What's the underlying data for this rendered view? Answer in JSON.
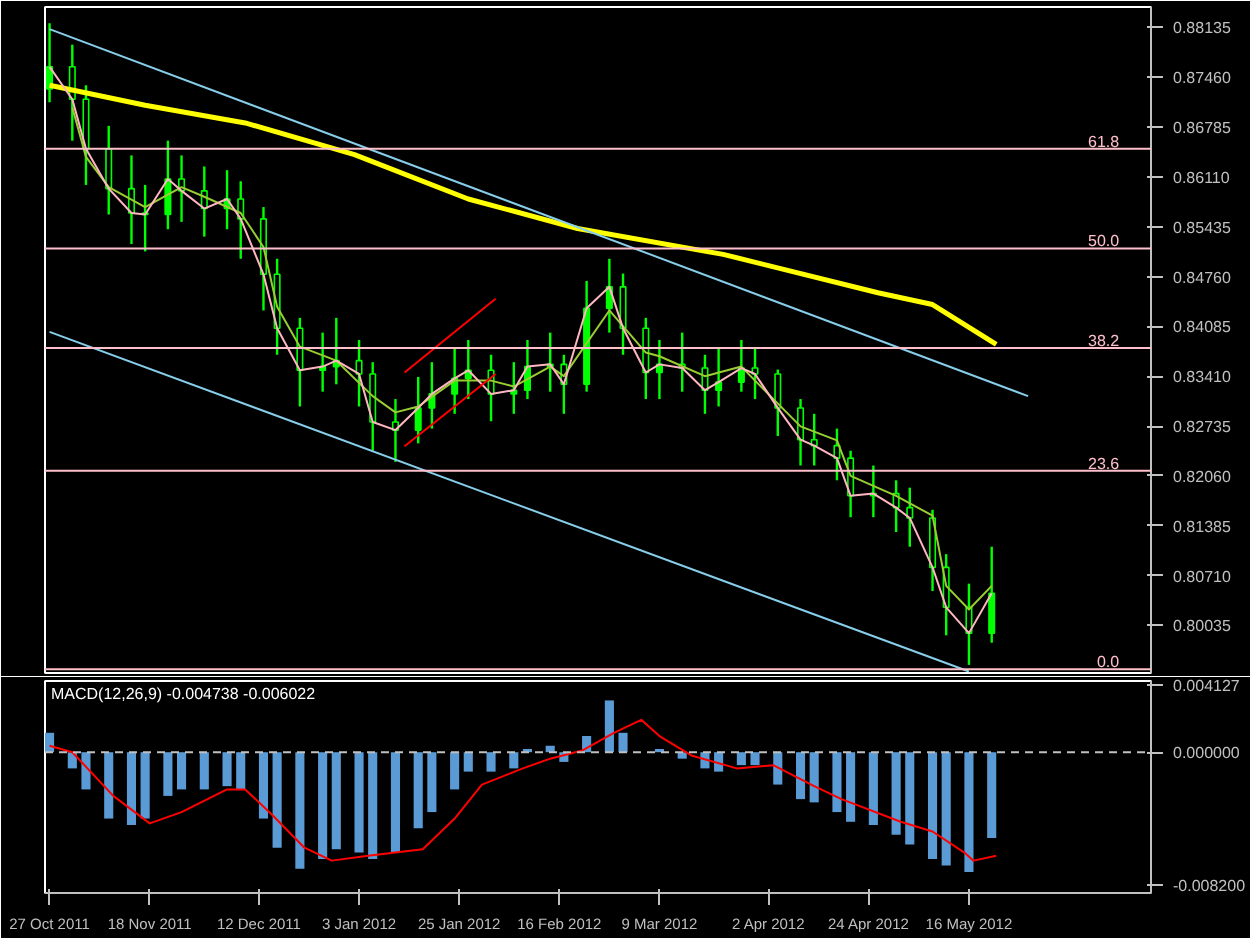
{
  "chart_data": [
    {
      "type": "candlestick",
      "tick_labels": "y",
      "color": "#00ff00",
      "x": [
        "2011-10-27",
        "2011-11-01",
        "2011-11-04",
        "2011-11-09",
        "2011-11-14",
        "2011-11-17",
        "2011-11-22",
        "2011-11-25",
        "2011-11-30",
        "2011-12-05",
        "2011-12-08",
        "2011-12-13",
        "2011-12-16",
        "2011-12-21",
        "2011-12-26",
        "2011-12-29",
        "2012-01-03",
        "2012-01-06",
        "2012-01-11",
        "2012-01-16",
        "2012-01-19",
        "2012-01-24",
        "2012-01-27",
        "2012-02-01",
        "2012-02-06",
        "2012-02-09",
        "2012-02-14",
        "2012-02-17",
        "2012-02-22",
        "2012-02-27",
        "2012-03-01",
        "2012-03-06",
        "2012-03-09",
        "2012-03-14",
        "2012-03-19",
        "2012-03-22",
        "2012-03-27",
        "2012-03-30",
        "2012-04-04",
        "2012-04-09",
        "2012-04-12",
        "2012-04-17",
        "2012-04-20",
        "2012-04-25",
        "2012-04-30",
        "2012-05-03",
        "2012-05-08",
        "2012-05-11",
        "2012-05-16",
        "2012-05-21"
      ],
      "ohlc": [
        [
          0.873,
          0.8819,
          0.8712,
          0.876
        ],
        [
          0.876,
          0.879,
          0.866,
          0.8716
        ],
        [
          0.8716,
          0.8735,
          0.86,
          0.8649
        ],
        [
          0.8649,
          0.868,
          0.856,
          0.8595
        ],
        [
          0.8595,
          0.864,
          0.852,
          0.8562
        ],
        [
          0.8562,
          0.86,
          0.851,
          0.856
        ],
        [
          0.856,
          0.866,
          0.854,
          0.8608
        ],
        [
          0.8608,
          0.864,
          0.855,
          0.8592
        ],
        [
          0.8592,
          0.8625,
          0.853,
          0.8568
        ],
        [
          0.8568,
          0.862,
          0.854,
          0.8581
        ],
        [
          0.8581,
          0.8605,
          0.85,
          0.8554
        ],
        [
          0.8554,
          0.857,
          0.843,
          0.8479
        ],
        [
          0.8479,
          0.85,
          0.837,
          0.8406
        ],
        [
          0.8406,
          0.842,
          0.83,
          0.8349
        ],
        [
          0.8349,
          0.84,
          0.832,
          0.8354
        ],
        [
          0.8354,
          0.842,
          0.833,
          0.8362
        ],
        [
          0.8362,
          0.839,
          0.83,
          0.8344
        ],
        [
          0.8344,
          0.836,
          0.824,
          0.8279
        ],
        [
          0.8279,
          0.831,
          0.8225,
          0.8268
        ],
        [
          0.8268,
          0.834,
          0.825,
          0.8298
        ],
        [
          0.8298,
          0.836,
          0.827,
          0.8317
        ],
        [
          0.8317,
          0.838,
          0.829,
          0.8338
        ],
        [
          0.8338,
          0.839,
          0.831,
          0.8349
        ],
        [
          0.8349,
          0.837,
          0.828,
          0.8317
        ],
        [
          0.8317,
          0.836,
          0.829,
          0.8322
        ],
        [
          0.8322,
          0.839,
          0.831,
          0.8354
        ],
        [
          0.8354,
          0.84,
          0.832,
          0.8357
        ],
        [
          0.8357,
          0.837,
          0.829,
          0.833
        ],
        [
          0.833,
          0.847,
          0.832,
          0.8433
        ],
        [
          0.8433,
          0.85,
          0.84,
          0.8462
        ],
        [
          0.8462,
          0.848,
          0.837,
          0.8406
        ],
        [
          0.8406,
          0.842,
          0.831,
          0.8346
        ],
        [
          0.8346,
          0.839,
          0.831,
          0.8357
        ],
        [
          0.8357,
          0.84,
          0.832,
          0.8352
        ],
        [
          0.8352,
          0.837,
          0.829,
          0.8322
        ],
        [
          0.8322,
          0.838,
          0.83,
          0.8333
        ],
        [
          0.8333,
          0.839,
          0.832,
          0.8352
        ],
        [
          0.8352,
          0.838,
          0.831,
          0.8344
        ],
        [
          0.8344,
          0.835,
          0.826,
          0.8298
        ],
        [
          0.8298,
          0.831,
          0.822,
          0.8255
        ],
        [
          0.8255,
          0.829,
          0.822,
          0.8247
        ],
        [
          0.8247,
          0.827,
          0.82,
          0.823
        ],
        [
          0.823,
          0.824,
          0.815,
          0.8179
        ],
        [
          0.8179,
          0.822,
          0.815,
          0.8182
        ],
        [
          0.8182,
          0.82,
          0.813,
          0.8163
        ],
        [
          0.8163,
          0.819,
          0.811,
          0.8149
        ],
        [
          0.8149,
          0.816,
          0.805,
          0.8082
        ],
        [
          0.8082,
          0.81,
          0.799,
          0.8028
        ],
        [
          0.8028,
          0.806,
          0.795,
          0.7993
        ],
        [
          0.7993,
          0.811,
          0.798,
          0.8047
        ]
      ],
      "series": [
        {
          "type": "line",
          "color": "#ffff00",
          "x": [
            "2011-10-27",
            "2011-11-17",
            "2011-12-09",
            "2012-01-02",
            "2012-01-27",
            "2012-02-20",
            "2012-03-23",
            "2012-04-26",
            "2012-05-08",
            "2012-05-22"
          ],
          "values": [
            0.8735,
            0.8708,
            0.8684,
            0.8641,
            0.8581,
            0.8541,
            0.8506,
            0.8454,
            0.8438,
            0.8384
          ]
        },
        {
          "type": "line",
          "color": "#9acd32",
          "x": [
            "2011-11-01",
            "2011-11-04",
            "2011-11-09",
            "2011-11-17",
            "2011-11-25",
            "2011-11-30",
            "2011-12-08",
            "2011-12-13",
            "2011-12-16",
            "2011-12-21",
            "2011-12-29",
            "2012-01-06",
            "2012-01-11",
            "2012-01-16",
            "2012-01-24",
            "2012-02-01",
            "2012-02-06",
            "2012-02-14",
            "2012-02-17",
            "2012-02-27",
            "2012-03-06",
            "2012-03-09",
            "2012-03-19",
            "2012-03-27",
            "2012-03-30",
            "2012-04-09",
            "2012-04-17",
            "2012-04-20",
            "2012-04-30",
            "2012-05-08",
            "2012-05-11",
            "2012-05-16",
            "2012-05-21"
          ],
          "values": [
            0.8705,
            0.8638,
            0.8597,
            0.857,
            0.8597,
            0.8584,
            0.8562,
            0.8516,
            0.8435,
            0.8381,
            0.8362,
            0.8314,
            0.8292,
            0.83,
            0.8335,
            0.8335,
            0.8327,
            0.8354,
            0.8341,
            0.843,
            0.8373,
            0.8368,
            0.8341,
            0.8354,
            0.8335,
            0.8273,
            0.8254,
            0.8206,
            0.8179,
            0.8152,
            0.8057,
            0.8025,
            0.8057
          ]
        },
        {
          "type": "line",
          "color": "#ffb6c1",
          "x": [
            "2011-10-27",
            "2011-11-01",
            "2011-11-04",
            "2011-11-09",
            "2011-11-14",
            "2011-11-17",
            "2011-11-22",
            "2011-11-25",
            "2011-11-30",
            "2011-12-05",
            "2011-12-08",
            "2011-12-13",
            "2011-12-16",
            "2011-12-21",
            "2011-12-26",
            "2011-12-29",
            "2012-01-03",
            "2012-01-06",
            "2012-01-11",
            "2012-01-16",
            "2012-01-19",
            "2012-01-24",
            "2012-01-27",
            "2012-02-01",
            "2012-02-06",
            "2012-02-09",
            "2012-02-14",
            "2012-02-17",
            "2012-02-22",
            "2012-02-27",
            "2012-03-01",
            "2012-03-06",
            "2012-03-09",
            "2012-03-14",
            "2012-03-19",
            "2012-03-22",
            "2012-03-27",
            "2012-03-30",
            "2012-04-04",
            "2012-04-09",
            "2012-04-12",
            "2012-04-17",
            "2012-04-20",
            "2012-04-25",
            "2012-04-30",
            "2012-05-03",
            "2012-05-08",
            "2012-05-11",
            "2012-05-16",
            "2012-05-21"
          ],
          "values": [
            0.876,
            0.8716,
            0.8649,
            0.8595,
            0.8562,
            0.856,
            0.8608,
            0.8592,
            0.8568,
            0.8581,
            0.8554,
            0.8479,
            0.8406,
            0.8349,
            0.8354,
            0.8362,
            0.8344,
            0.8279,
            0.8268,
            0.8298,
            0.8317,
            0.8338,
            0.8349,
            0.8317,
            0.8322,
            0.8354,
            0.8357,
            0.833,
            0.8433,
            0.8462,
            0.8406,
            0.8346,
            0.8357,
            0.8352,
            0.8322,
            0.8333,
            0.8352,
            0.8344,
            0.8298,
            0.8255,
            0.8247,
            0.823,
            0.8179,
            0.8182,
            0.8163,
            0.8149,
            0.8082,
            0.8028,
            0.7993,
            0.8047
          ]
        },
        {
          "type": "line",
          "color": "#87ceeb",
          "x": [
            "2011-10-27",
            "2012-05-29"
          ],
          "values": [
            0.8811,
            0.8314
          ]
        },
        {
          "type": "line",
          "color": "#87ceeb",
          "x": [
            "2011-10-27",
            "2012-05-16"
          ],
          "values": [
            0.8401,
            0.7941
          ]
        },
        {
          "type": "line",
          "color": "#ff0000",
          "x": [
            "2012-01-13",
            "2012-02-02"
          ],
          "values": [
            0.8346,
            0.8446
          ]
        },
        {
          "type": "line",
          "color": "#ff0000",
          "x": [
            "2012-01-13",
            "2012-02-02"
          ],
          "values": [
            0.8246,
            0.8344
          ]
        }
      ],
      "ref_lines": [
        {
          "axis": "y",
          "value": 0.8649,
          "color": "#ffc0cb"
        },
        {
          "axis": "y",
          "value": 0.8514,
          "color": "#ffc0cb"
        },
        {
          "axis": "y",
          "value": 0.8379,
          "color": "#ffc0cb"
        },
        {
          "axis": "y",
          "value": 0.8213,
          "color": "#ffc0cb"
        },
        {
          "axis": "y",
          "value": 0.7944,
          "color": "#ffc0cb"
        }
      ],
      "annotations": [
        {
          "text": "61.8",
          "x": "2012-06-18",
          "y": 0.8649
        },
        {
          "text": "50.0",
          "x": "2012-06-18",
          "y": 0.8514
        },
        {
          "text": "38.2",
          "x": "2012-06-18",
          "y": 0.8379
        },
        {
          "text": "23.6",
          "x": "2012-06-18",
          "y": 0.8213
        },
        {
          "text": "0.0",
          "x": "2012-06-18",
          "y": 0.7944
        }
      ],
      "xlim": [
        "2011-10-26",
        "2012-06-25"
      ],
      "ylim": [
        0.7939,
        0.8841
      ],
      "yticks": [
        {
          "value": 0.80035,
          "label": "0.80035"
        },
        {
          "value": 0.8071,
          "label": "0.80710"
        },
        {
          "value": 0.81385,
          "label": "0.81385"
        },
        {
          "value": 0.8206,
          "label": "0.82060"
        },
        {
          "value": 0.82735,
          "label": "0.82735"
        },
        {
          "value": 0.8341,
          "label": "0.83410"
        },
        {
          "value": 0.84085,
          "label": "0.84085"
        },
        {
          "value": 0.8476,
          "label": "0.84760"
        },
        {
          "value": 0.85435,
          "label": "0.85435"
        },
        {
          "value": 0.8611,
          "label": "0.86110"
        },
        {
          "value": 0.86785,
          "label": "0.86785"
        },
        {
          "value": 0.8746,
          "label": "0.87460"
        },
        {
          "value": 0.88135,
          "label": "0.88135"
        }
      ]
    },
    {
      "type": "bar",
      "title": "MACD(12,26,9) -0.004738 -0.006022",
      "series": [
        {
          "type": "bar",
          "color": "#5b9bd5",
          "x": [
            "2011-10-27",
            "2011-11-01",
            "2011-11-04",
            "2011-11-09",
            "2011-11-14",
            "2011-11-17",
            "2011-11-22",
            "2011-11-25",
            "2011-11-30",
            "2011-12-05",
            "2011-12-08",
            "2011-12-13",
            "2011-12-16",
            "2011-12-21",
            "2011-12-26",
            "2011-12-29",
            "2012-01-03",
            "2012-01-06",
            "2012-01-11",
            "2012-01-16",
            "2012-01-19",
            "2012-01-24",
            "2012-01-27",
            "2012-02-01",
            "2012-02-06",
            "2012-02-09",
            "2012-02-14",
            "2012-02-17",
            "2012-02-22",
            "2012-02-27",
            "2012-03-01",
            "2012-03-06",
            "2012-03-09",
            "2012-03-14",
            "2012-03-19",
            "2012-03-22",
            "2012-03-27",
            "2012-03-30",
            "2012-04-04",
            "2012-04-09",
            "2012-04-12",
            "2012-04-17",
            "2012-04-20",
            "2012-04-25",
            "2012-04-30",
            "2012-05-03",
            "2012-05-08",
            "2012-05-11",
            "2012-05-16",
            "2012-05-21"
          ],
          "values": [
            0.0012,
            -0.001,
            -0.0023,
            -0.0041,
            -0.0045,
            -0.0041,
            -0.0027,
            -0.0023,
            -0.0023,
            -0.0021,
            -0.0023,
            -0.0041,
            -0.0059,
            -0.0072,
            -0.0066,
            -0.006,
            -0.0062,
            -0.0066,
            -0.0062,
            -0.0047,
            -0.0037,
            -0.0023,
            -0.0012,
            -0.0012,
            -0.001,
            0.0002,
            0.0004,
            -0.0006,
            0.001,
            0.0032,
            0.0012,
            null,
            0.0002,
            -0.0004,
            -0.001,
            -0.0012,
            -0.0008,
            -0.0008,
            -0.002,
            -0.0029,
            -0.0031,
            -0.0037,
            -0.0043,
            -0.0045,
            -0.0051,
            -0.0057,
            -0.0066,
            -0.007,
            -0.0074,
            -0.0053
          ]
        },
        {
          "type": "line",
          "color": "#ff0000",
          "x": [
            "2011-10-27",
            "2011-11-01",
            "2011-11-10",
            "2011-11-18",
            "2011-11-25",
            "2011-12-05",
            "2011-12-09",
            "2011-12-15",
            "2011-12-22",
            "2011-12-28",
            "2012-01-05",
            "2012-01-17",
            "2012-01-24",
            "2012-01-30",
            "2012-02-08",
            "2012-02-14",
            "2012-02-21",
            "2012-02-28",
            "2012-03-05",
            "2012-03-09",
            "2012-03-16",
            "2012-03-26",
            "2012-04-03",
            "2012-04-12",
            "2012-04-18",
            "2012-05-01",
            "2012-05-08",
            "2012-05-15",
            "2012-05-17",
            "2012-05-22"
          ],
          "values": [
            0.0004,
            0,
            -0.0027,
            -0.0044,
            -0.0037,
            -0.0023,
            -0.0023,
            -0.0039,
            -0.0059,
            -0.0067,
            -0.0064,
            -0.006,
            -0.0041,
            -0.002,
            -0.001,
            -0.0004,
            0.0001,
            0.0012,
            0.002,
            0.001,
            -0.0002,
            -0.001,
            -0.0008,
            -0.0021,
            -0.0029,
            -0.0043,
            -0.0049,
            -0.0062,
            -0.0067,
            -0.0064
          ]
        }
      ],
      "ref_lines": [
        {
          "axis": "y",
          "value": 0,
          "color": "#c0c0c0",
          "line_style": "dashed"
        }
      ],
      "xlim": [
        "2011-10-26",
        "2012-06-25"
      ],
      "ylim": [
        -0.0087,
        0.0044
      ],
      "xticks": [
        {
          "value": "2011-10-27",
          "label": "27 Oct 2011"
        },
        {
          "value": "2011-11-18",
          "label": "18 Nov 2011"
        },
        {
          "value": "2011-12-12",
          "label": "12 Dec 2011"
        },
        {
          "value": "2012-01-03",
          "label": "3 Jan 2012"
        },
        {
          "value": "2012-01-25",
          "label": "25 Jan 2012"
        },
        {
          "value": "2012-02-16",
          "label": "16 Feb 2012"
        },
        {
          "value": "2012-03-09",
          "label": "9 Mar 2012"
        },
        {
          "value": "2012-04-02",
          "label": "2 Apr 2012"
        },
        {
          "value": "2012-04-24",
          "label": "24 Apr 2012"
        },
        {
          "value": "2012-05-16",
          "label": "16 May 2012"
        }
      ],
      "yticks": [
        {
          "value": 0.004127,
          "label": "0.004127"
        },
        {
          "value": 0,
          "label": "0.000000"
        },
        {
          "value": -0.0082,
          "label": "-0.008200"
        }
      ]
    }
  ]
}
